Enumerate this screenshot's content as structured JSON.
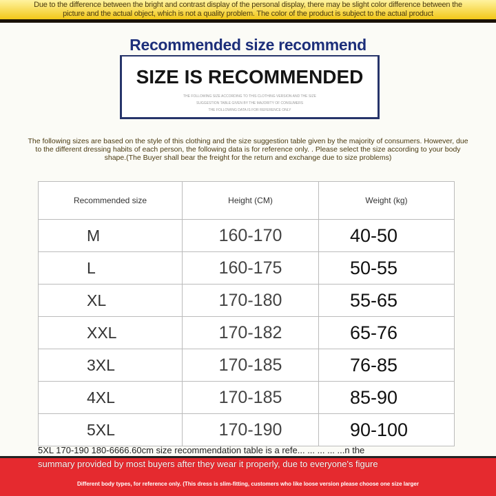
{
  "disclaimer": "Due to the difference between the bright and contrast display of the personal display, there may be slight color difference between the picture and the actual object, which is not a quality problem. The color of the product is subject to the actual product",
  "title": "Recommended size recommend",
  "box": {
    "heading": "SIZE IS RECOMMENDED",
    "lines": [
      "THE FOLLOWING SIZE ACCORDING TO THIS CLOTHING VERSION AND THE SIZE",
      "SUGGESTION TABLE GIVEN BY THE MAJORITY OF CONSUMERS",
      "THE FOLLOWING DATA IS FOR REFERENCE ONLY"
    ]
  },
  "note": "The following sizes are based on the style of this clothing and the size suggestion table given by the majority of consumers. However, due to the different dressing habits of each person, the following data is for reference only. . Please select the size according to your body shape.(The Buyer shall bear the freight for the return and exchange due to size problems)",
  "table": {
    "headers": [
      "Recommended size",
      "Height (CM)",
      "Weight (kg)"
    ],
    "rows": [
      [
        "M",
        "160-170",
        "40-50"
      ],
      [
        "L",
        "160-175",
        "50-55"
      ],
      [
        "XL",
        "170-180",
        "55-65"
      ],
      [
        "XXL",
        "170-182",
        "65-76"
      ],
      [
        "3XL",
        "170-185",
        "76-85"
      ],
      [
        "4XL",
        "170-185",
        "85-90"
      ],
      [
        "5XL",
        "170-190",
        "90-100"
      ]
    ]
  },
  "overlay_text": "5XL 170-190 180-6666.60cm size recommendation table is a refe... ... ... ... ...n the",
  "summary_text": "summary provided by most buyers after they wear it properly, due to everyone's figure",
  "footer": "Different body types, for reference only. (This dress is slim-fitting, customers who like loose version please choose one size larger",
  "colors": {
    "top_band": "#f2c718",
    "title": "#1d2f7a",
    "bottom_band": "#e52a2f"
  }
}
